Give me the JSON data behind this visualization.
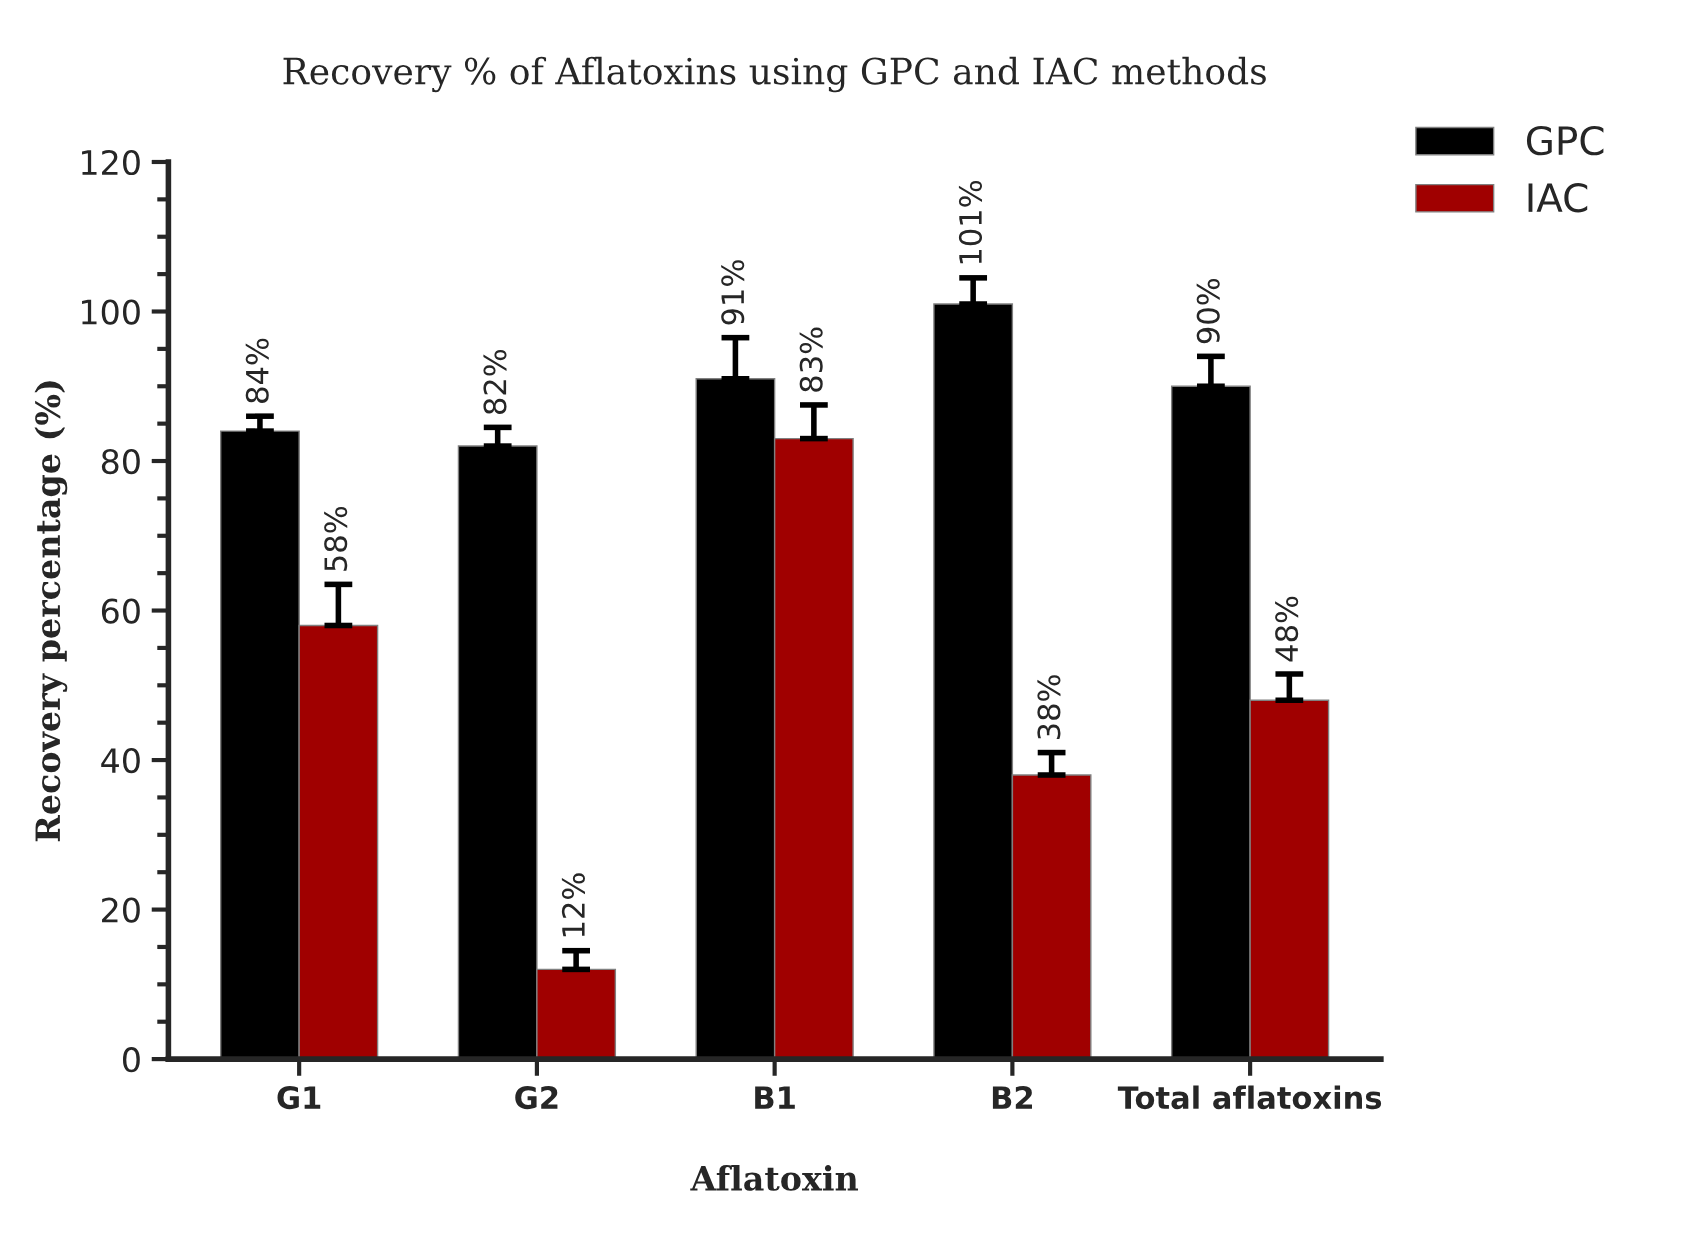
{
  "chart_data": {
    "type": "bar",
    "title": "Recovery % of Aflatoxins using GPC and IAC methods",
    "xlabel": "Aflatoxin",
    "ylabel": "Recovery percentage (%)",
    "categories": [
      "G1",
      "G2",
      "B1",
      "B2",
      "Total aflatoxins"
    ],
    "series": [
      {
        "name": "GPC",
        "color": "#000000",
        "values": [
          84,
          82,
          91,
          101,
          90
        ],
        "errors": [
          [
            84,
            86
          ],
          [
            82,
            84.5
          ],
          [
            91,
            96.5
          ],
          [
            101,
            104.5
          ],
          [
            90,
            94
          ]
        ],
        "value_labels": [
          "84%",
          "82%",
          "91%",
          "101%",
          "90%"
        ]
      },
      {
        "name": "IAC",
        "color": "#a00000",
        "values": [
          58,
          12,
          83,
          38,
          48
        ],
        "errors": [
          [
            58,
            63.5
          ],
          [
            12,
            14.5
          ],
          [
            83,
            87.5
          ],
          [
            38,
            41
          ],
          [
            48,
            51.5
          ]
        ],
        "value_labels": [
          "58%",
          "12%",
          "83%",
          "38%",
          "48%"
        ]
      }
    ],
    "ylim": [
      0,
      120
    ],
    "yticks": [
      0,
      20,
      40,
      60,
      80,
      100,
      120
    ],
    "legend": "top right",
    "grid": false
  }
}
